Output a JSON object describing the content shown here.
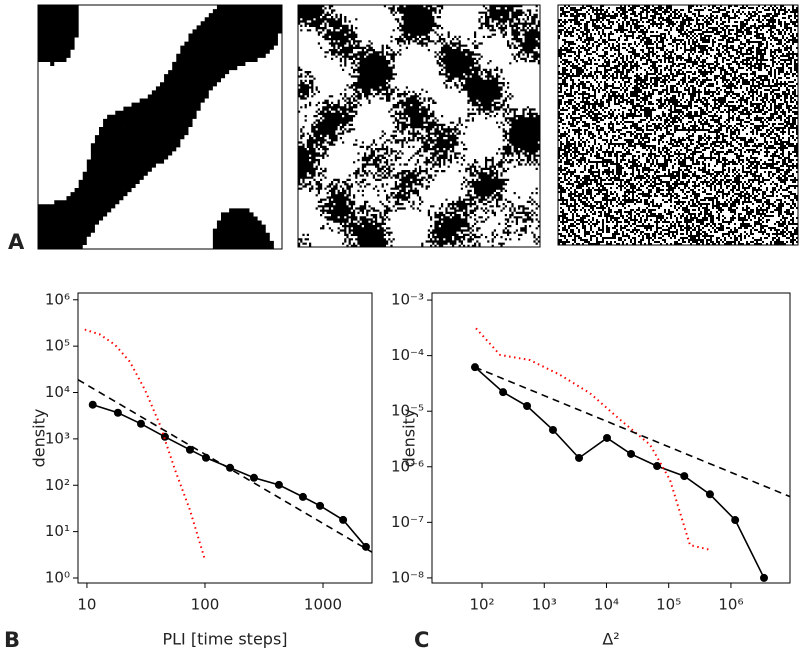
{
  "figure": {
    "panel_labels": [
      "A",
      "B",
      "C"
    ]
  },
  "chart_data": [
    {
      "type": "line",
      "ylabel": "density",
      "xlabel": "PLI [time steps]",
      "xscale": "log",
      "yscale": "log",
      "xlim": [
        8.4,
        2600
      ],
      "ylim": [
        0.78,
        1400000
      ],
      "xticks": [
        10,
        100,
        1000
      ],
      "yticks": [
        {
          "value": 1,
          "label": "10⁰"
        },
        {
          "value": 10,
          "label": "10¹"
        },
        {
          "value": 100,
          "label": "10²"
        },
        {
          "value": 1000,
          "label": "10³"
        },
        {
          "value": 10000,
          "label": "10⁴"
        },
        {
          "value": 100000,
          "label": "10⁵"
        },
        {
          "value": 1000000,
          "label": "10⁶"
        }
      ],
      "series": [
        {
          "color": "#000000",
          "style": "solid",
          "markers": true,
          "x": [
            11.2,
            18.3,
            28.7,
            45.8,
            74.6,
            102,
            163,
            260,
            423,
            676,
            944,
            1480,
            2310
          ],
          "values": [
            5460,
            3660,
            2120,
            1110,
            582,
            391,
            238,
            145,
            102,
            56,
            36,
            17.9,
            4.7
          ]
        },
        {
          "color": "#ff0000",
          "style": "dotted",
          "markers": false,
          "x": [
            9.6,
            12.9,
            17.3,
            23.1,
            31,
            41.6,
            55.7,
            74.6,
            100
          ],
          "values": [
            227000,
            178000,
            107000,
            46000,
            11500,
            2000,
            215,
            29,
            2.45
          ]
        },
        {
          "color": "#000000",
          "style": "dashed",
          "markers": false,
          "x": [
            8.4,
            2600
          ],
          "values": [
            18900,
            3.6
          ]
        }
      ]
    },
    {
      "type": "line",
      "ylabel": "density",
      "xlabel": "Δ²",
      "xscale": "log",
      "yscale": "log",
      "xlim": [
        15.7,
        8900000
      ],
      "ylim": [
        8.1e-09,
        0.00134
      ],
      "xticks": [
        {
          "value": 100,
          "label": "10²"
        },
        {
          "value": 1000,
          "label": "10³"
        },
        {
          "value": 10000,
          "label": "10⁴"
        },
        {
          "value": 100000,
          "label": "10⁵"
        },
        {
          "value": 1000000,
          "label": "10⁶"
        }
      ],
      "yticks": [
        {
          "value": 1e-08,
          "label": "10⁻⁸"
        },
        {
          "value": 1e-07,
          "label": "10⁻⁷"
        },
        {
          "value": 1e-06,
          "label": "10⁻⁶"
        },
        {
          "value": 1e-05,
          "label": "10⁻⁵"
        },
        {
          "value": 0.0001,
          "label": "10⁻⁴"
        },
        {
          "value": 0.001,
          "label": "10⁻³"
        }
      ],
      "series": [
        {
          "color": "#000000",
          "style": "solid",
          "markers": true,
          "x": [
            77,
            218,
            529,
            1380,
            3620,
            10200,
            24800,
            65000,
            178000,
            460000,
            1170000,
            3400000
          ],
          "values": [
            6.2e-05,
            2.2e-05,
            1.24e-05,
            4.6e-06,
            1.44e-06,
            3.3e-06,
            1.7e-06,
            1.03e-06,
            6.8e-07,
            3.2e-07,
            1.1e-07,
            1e-08
          ]
        },
        {
          "color": "#ff0000",
          "style": "dotted",
          "markers": false,
          "x": [
            80,
            195,
            590,
            1800,
            5450,
            16600,
            50000,
            105000,
            220000,
            460000
          ],
          "values": [
            0.00031,
            0.000103,
            8.3e-05,
            4.5e-05,
            2.1e-05,
            7e-06,
            2.5e-06,
            5.8e-07,
            3.9e-08,
            3.2e-08
          ]
        },
        {
          "color": "#000000",
          "style": "dashed",
          "markers": false,
          "x": [
            77,
            8900000
          ],
          "values": [
            6.2e-05,
            2.9e-07
          ]
        }
      ]
    }
  ]
}
